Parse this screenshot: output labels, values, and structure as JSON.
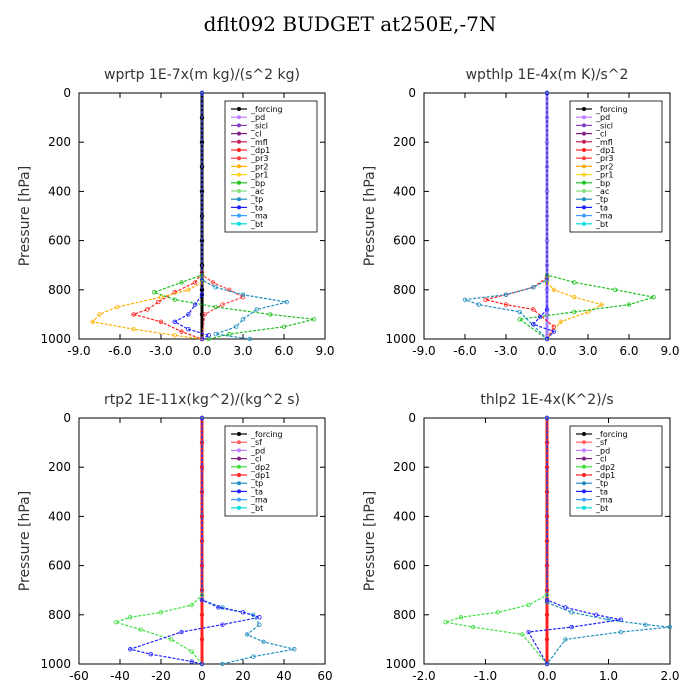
{
  "title": "dflt092  BUDGET at250E,-7N",
  "chart_data": [
    {
      "type": "line",
      "title": "wprtp  1E-7x(m kg)/(s^2 kg)",
      "ylabel": "Pressure [hPa]",
      "xlim": [
        -9,
        9
      ],
      "ylim": [
        1000,
        0
      ],
      "xticks": [
        "-9.0",
        "-6.0",
        "-3.0",
        "0.0",
        "3.0",
        "6.0",
        "9.0"
      ],
      "yticks": [
        "0",
        "200",
        "400",
        "600",
        "800",
        "1000"
      ],
      "legend": [
        "_forcing",
        "_pd",
        "_sicl",
        "_cl",
        "_mfl",
        "_dp1",
        "_pr3",
        "_pr2",
        "_pr1",
        "_bp",
        "_ac",
        "_tp",
        "_ta",
        "_ma",
        "_bt"
      ],
      "series": [
        {
          "name": "_forcing",
          "color": "#000000",
          "x": [
            0,
            0,
            0,
            0,
            0,
            0,
            0,
            0,
            0,
            0,
            0
          ],
          "y": [
            0,
            100,
            200,
            300,
            400,
            500,
            600,
            700,
            800,
            900,
            1000
          ]
        },
        {
          "name": "_dp1",
          "color": "#ff2020",
          "x": [
            0,
            0,
            -0.5,
            -2,
            -3.2,
            -4,
            -5,
            -3,
            -1.5,
            0
          ],
          "y": [
            0,
            730,
            770,
            810,
            850,
            880,
            900,
            930,
            970,
            1000
          ]
        },
        {
          "name": "_pr3",
          "color": "#ff4040",
          "x": [
            0,
            0,
            0.8,
            2,
            3.0,
            1.5,
            0.2,
            0
          ],
          "y": [
            0,
            740,
            770,
            800,
            830,
            860,
            900,
            1000
          ]
        },
        {
          "name": "_pr2",
          "color": "#ffb000",
          "x": [
            0,
            0,
            -1,
            -3,
            -6.2,
            -7.5,
            -8,
            -5,
            -2,
            0
          ],
          "y": [
            0,
            770,
            800,
            830,
            870,
            900,
            930,
            960,
            985,
            1000
          ]
        },
        {
          "name": "_bp",
          "color": "#20c020",
          "x": [
            0,
            0,
            -1.5,
            -3.5,
            -2,
            1,
            5,
            8.2,
            6,
            2,
            0.5
          ],
          "y": [
            0,
            740,
            770,
            810,
            840,
            870,
            900,
            920,
            950,
            980,
            1000
          ]
        },
        {
          "name": "_tp",
          "color": "#2090c0",
          "x": [
            0,
            0,
            1,
            3,
            6.2,
            4,
            3,
            2.5,
            1,
            3.5
          ],
          "y": [
            0,
            760,
            790,
            820,
            850,
            880,
            920,
            950,
            980,
            1000
          ]
        },
        {
          "name": "_ta",
          "color": "#2020ff",
          "x": [
            0,
            0,
            -0.5,
            -1,
            -2,
            -1,
            0.5,
            0
          ],
          "y": [
            0,
            820,
            860,
            900,
            930,
            960,
            985,
            1000
          ]
        }
      ]
    },
    {
      "type": "line",
      "title": "wpthlp  1E-4x(m K)/s^2",
      "ylabel": "Pressure [hPa]",
      "xlim": [
        -9,
        9
      ],
      "ylim": [
        1000,
        0
      ],
      "xticks": [
        "-9.0",
        "-6.0",
        "-3.0",
        "0.0",
        "3.0",
        "6.0",
        "9.0"
      ],
      "yticks": [
        "0",
        "200",
        "400",
        "600",
        "800",
        "1000"
      ],
      "legend": [
        "_forcing",
        "_pd",
        "_sicl",
        "_cl",
        "_mfl",
        "_dp1",
        "_pr3",
        "_pr2",
        "_pr1",
        "_bp",
        "_ac",
        "_tp",
        "_ta",
        "_ma",
        "_bt"
      ],
      "series": [
        {
          "name": "_forcing",
          "color": "#a080ff",
          "x": [
            0,
            0,
            0,
            0,
            0,
            0,
            0,
            0,
            0,
            0,
            0
          ],
          "y": [
            0,
            100,
            200,
            300,
            400,
            500,
            600,
            700,
            800,
            900,
            1000
          ]
        },
        {
          "name": "_dp1",
          "color": "#ff2020",
          "x": [
            0,
            0,
            -1,
            -3,
            -4.5,
            -3,
            -1,
            0.5,
            0
          ],
          "y": [
            0,
            750,
            790,
            820,
            840,
            860,
            880,
            950,
            1000
          ]
        },
        {
          "name": "_pr2",
          "color": "#ffb000",
          "x": [
            0,
            0,
            0.5,
            2,
            4.0,
            3,
            1,
            0
          ],
          "y": [
            0,
            770,
            800,
            830,
            860,
            890,
            930,
            1000
          ]
        },
        {
          "name": "_bp",
          "color": "#20c020",
          "x": [
            0,
            0,
            2,
            5,
            7.8,
            6,
            2,
            -2,
            0
          ],
          "y": [
            0,
            740,
            770,
            800,
            830,
            860,
            890,
            920,
            1000
          ]
        },
        {
          "name": "_tp",
          "color": "#2090c0",
          "x": [
            0,
            0,
            -1,
            -3,
            -6,
            -5,
            -2,
            0
          ],
          "y": [
            0,
            760,
            790,
            820,
            840,
            860,
            890,
            1000
          ]
        },
        {
          "name": "_ta",
          "color": "#2020ff",
          "x": [
            0,
            0,
            -0.5,
            -1,
            0.5,
            0
          ],
          "y": [
            0,
            880,
            910,
            940,
            970,
            1000
          ]
        }
      ]
    },
    {
      "type": "line",
      "title": "rtp2  1E-11x(kg^2)/(kg^2 s)",
      "ylabel": "Pressure [hPa]",
      "xlim": [
        -60,
        60
      ],
      "ylim": [
        1000,
        0
      ],
      "xticks": [
        "-60",
        "-40",
        "-20",
        "0",
        "20",
        "40",
        "60"
      ],
      "yticks": [
        "0",
        "200",
        "400",
        "600",
        "800",
        "1000"
      ],
      "legend": [
        "_forcing",
        "_sf",
        "_pd",
        "_cl",
        "_dp2",
        "_dp1",
        "_tp",
        "_ta",
        "_ma",
        "_bt"
      ],
      "series": [
        {
          "name": "_forcing",
          "color": "#ff2020",
          "x": [
            0,
            0,
            0,
            0,
            0,
            0,
            0,
            0,
            0,
            0,
            0
          ],
          "y": [
            0,
            100,
            200,
            300,
            400,
            500,
            600,
            700,
            800,
            900,
            1000
          ]
        },
        {
          "name": "_dp2",
          "color": "#40e040",
          "x": [
            0,
            0,
            -5,
            -20,
            -35,
            -42,
            -30,
            -15,
            -5,
            0
          ],
          "y": [
            0,
            720,
            760,
            790,
            810,
            830,
            860,
            900,
            950,
            1000
          ]
        },
        {
          "name": "_tp",
          "color": "#2090c0",
          "x": [
            0,
            0,
            10,
            25,
            28,
            22,
            30,
            45,
            25,
            10
          ],
          "y": [
            0,
            740,
            770,
            800,
            840,
            880,
            910,
            940,
            970,
            1000
          ]
        },
        {
          "name": "_ta",
          "color": "#2020ff",
          "x": [
            0,
            0,
            8,
            20,
            28,
            10,
            -10,
            -35,
            -25,
            -5,
            0
          ],
          "y": [
            0,
            740,
            770,
            790,
            810,
            840,
            870,
            940,
            960,
            990,
            1000
          ]
        }
      ]
    },
    {
      "type": "line",
      "title": "thlp2  1E-4x(K^2)/s",
      "ylabel": "Pressure [hPa]",
      "xlim": [
        -2,
        2
      ],
      "ylim": [
        1000,
        0
      ],
      "xticks": [
        "-2.0",
        "-1.0",
        "0.0",
        "1.0",
        "2.0"
      ],
      "yticks": [
        "0",
        "200",
        "400",
        "600",
        "800",
        "1000"
      ],
      "legend": [
        "_forcing",
        "_sf",
        "_pd",
        "_cl",
        "_dp2",
        "_dp1",
        "_tp",
        "_ta",
        "_ma",
        "_bt"
      ],
      "series": [
        {
          "name": "_forcing",
          "color": "#ff2020",
          "x": [
            0,
            0,
            0,
            0,
            0,
            0,
            0,
            0,
            0,
            0,
            0
          ],
          "y": [
            0,
            100,
            200,
            300,
            400,
            500,
            600,
            700,
            800,
            900,
            1000
          ]
        },
        {
          "name": "_dp2",
          "color": "#40e040",
          "x": [
            0,
            0,
            -0.3,
            -0.8,
            -1.4,
            -1.65,
            -1.2,
            -0.4,
            0
          ],
          "y": [
            0,
            720,
            760,
            790,
            810,
            830,
            850,
            880,
            1000
          ]
        },
        {
          "name": "_tp",
          "color": "#2090c0",
          "x": [
            0,
            0,
            0.4,
            1.0,
            1.6,
            2.0,
            1.2,
            0.3,
            0
          ],
          "y": [
            0,
            750,
            790,
            820,
            840,
            850,
            870,
            900,
            1000
          ]
        },
        {
          "name": "_ta",
          "color": "#2020ff",
          "x": [
            0,
            0,
            0.3,
            0.8,
            1.2,
            0.4,
            -0.3,
            0
          ],
          "y": [
            0,
            740,
            770,
            800,
            820,
            850,
            870,
            1000
          ]
        }
      ]
    }
  ]
}
